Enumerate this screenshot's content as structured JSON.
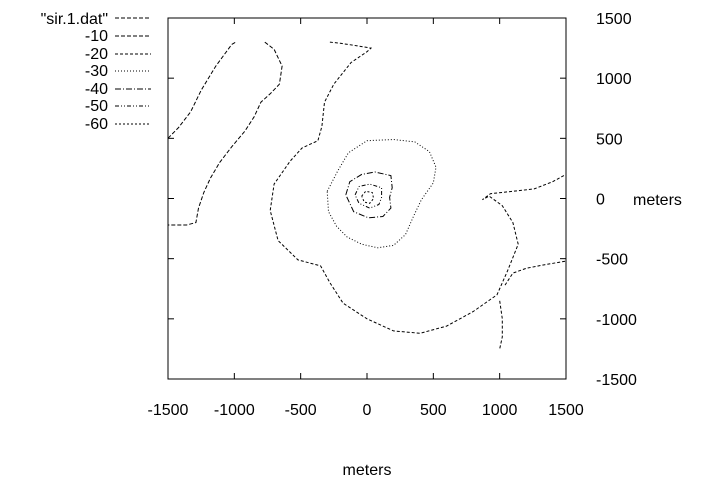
{
  "chart_data": {
    "type": "contour",
    "title": "",
    "xlabel": "meters",
    "ylabel": "meters",
    "xlim": [
      -1500,
      1500
    ],
    "ylim": [
      -1500,
      1500
    ],
    "xticks": [
      "-1500",
      "-1000",
      "-500",
      "0",
      "500",
      "1000",
      "1500"
    ],
    "yticks": [
      "1500",
      "1000",
      "500",
      "0",
      "-500",
      "-1000",
      "-1500"
    ],
    "grid": false,
    "legend_position": "top-left",
    "legend": [
      "\"sir.1.dat\"",
      "-10",
      "-20",
      "-30",
      "-40",
      "-50",
      "-60"
    ],
    "series": [
      {
        "name": "-10",
        "dash": "4,2",
        "paths": [
          [
            [
              -1500,
              500
            ],
            [
              -1420,
              590
            ],
            [
              -1330,
              720
            ],
            [
              -1250,
              900
            ],
            [
              -1140,
              1100
            ],
            [
              -1020,
              1280
            ],
            [
              -990,
              1300
            ]
          ],
          [
            [
              -770,
              1300
            ],
            [
              -700,
              1240
            ],
            [
              -640,
              1100
            ],
            [
              -660,
              950
            ],
            [
              -730,
              870
            ],
            [
              -800,
              800
            ],
            [
              -850,
              680
            ],
            [
              -920,
              560
            ],
            [
              -1020,
              430
            ],
            [
              -1110,
              300
            ],
            [
              -1180,
              170
            ],
            [
              -1230,
              50
            ],
            [
              -1270,
              -80
            ],
            [
              -1290,
              -200
            ],
            [
              -1360,
              -220
            ],
            [
              -1500,
              -220
            ]
          ]
        ]
      },
      {
        "name": "-20",
        "dash": "3,2",
        "paths": [
          [
            [
              -280,
              1300
            ],
            [
              -200,
              1290
            ],
            [
              -80,
              1270
            ],
            [
              30,
              1250
            ],
            [
              0,
              1220
            ],
            [
              -120,
              1130
            ],
            [
              -250,
              950
            ],
            [
              -320,
              800
            ],
            [
              -340,
              600
            ],
            [
              -370,
              480
            ],
            [
              -490,
              420
            ],
            [
              -580,
              310
            ],
            [
              -700,
              120
            ],
            [
              -730,
              -100
            ],
            [
              -670,
              -350
            ],
            [
              -520,
              -510
            ],
            [
              -350,
              -560
            ],
            [
              -280,
              -700
            ],
            [
              -180,
              -870
            ],
            [
              0,
              -1000
            ],
            [
              200,
              -1100
            ],
            [
              400,
              -1120
            ],
            [
              600,
              -1060
            ],
            [
              800,
              -940
            ],
            [
              980,
              -800
            ],
            [
              1060,
              -600
            ],
            [
              1140,
              -380
            ],
            [
              1100,
              -200
            ],
            [
              1020,
              -60
            ],
            [
              920,
              20
            ],
            [
              870,
              -10
            ],
            [
              930,
              40
            ],
            [
              1100,
              60
            ],
            [
              1260,
              80
            ],
            [
              1400,
              140
            ],
            [
              1500,
              200
            ]
          ],
          [
            [
              1000,
              -850
            ],
            [
              1020,
              -1000
            ],
            [
              1020,
              -1150
            ],
            [
              1000,
              -1250
            ]
          ],
          [
            [
              1040,
              -720
            ],
            [
              1100,
              -620
            ],
            [
              1200,
              -580
            ],
            [
              1340,
              -550
            ],
            [
              1500,
              -520
            ]
          ]
        ]
      },
      {
        "name": "-30",
        "dash": "1,2",
        "paths": [
          [
            [
              -300,
              60
            ],
            [
              -220,
              230
            ],
            [
              -140,
              380
            ],
            [
              0,
              480
            ],
            [
              200,
              490
            ],
            [
              360,
              470
            ],
            [
              470,
              390
            ],
            [
              520,
              260
            ],
            [
              500,
              130
            ],
            [
              410,
              -10
            ],
            [
              350,
              -150
            ],
            [
              290,
              -300
            ],
            [
              200,
              -390
            ],
            [
              80,
              -410
            ],
            [
              -40,
              -380
            ],
            [
              -150,
              -320
            ],
            [
              -230,
              -230
            ],
            [
              -290,
              -110
            ],
            [
              -300,
              60
            ]
          ]
        ]
      },
      {
        "name": "-40",
        "dash": "6,2,1,2",
        "paths": [
          [
            [
              -160,
              30
            ],
            [
              -130,
              140
            ],
            [
              -40,
              200
            ],
            [
              60,
              220
            ],
            [
              180,
              190
            ],
            [
              190,
              90
            ],
            [
              170,
              10
            ],
            [
              180,
              -80
            ],
            [
              120,
              -150
            ],
            [
              10,
              -160
            ],
            [
              -100,
              -110
            ],
            [
              -160,
              30
            ]
          ]
        ]
      },
      {
        "name": "-50",
        "dash": "4,2,1,2,1,2",
        "paths": [
          [
            [
              -90,
              30
            ],
            [
              -60,
              100
            ],
            [
              20,
              120
            ],
            [
              110,
              90
            ],
            [
              110,
              10
            ],
            [
              90,
              -50
            ],
            [
              20,
              -80
            ],
            [
              -60,
              -40
            ],
            [
              -90,
              30
            ]
          ]
        ]
      },
      {
        "name": "-60",
        "dash": "2,2",
        "paths": [
          [
            [
              -40,
              20
            ],
            [
              -10,
              60
            ],
            [
              40,
              50
            ],
            [
              50,
              0
            ],
            [
              20,
              -40
            ],
            [
              -20,
              -30
            ],
            [
              -40,
              20
            ]
          ]
        ]
      }
    ]
  }
}
